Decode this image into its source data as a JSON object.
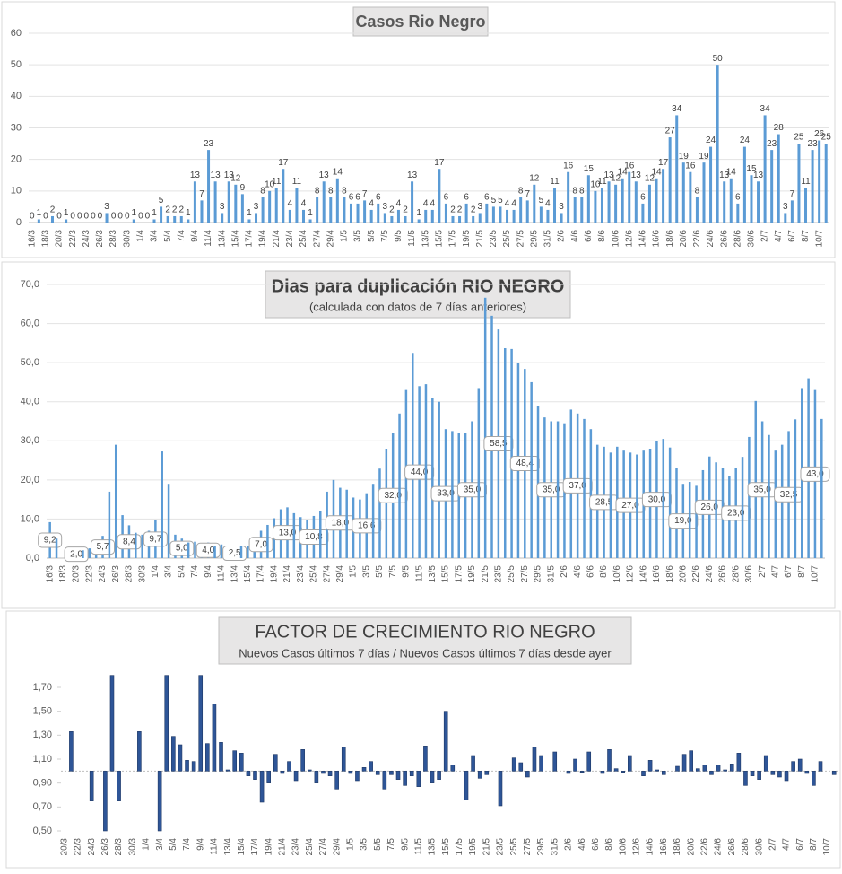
{
  "chart_data": [
    {
      "type": "bar",
      "title": "Casos Rio Negro",
      "color": "#5b9bd5",
      "grid": true,
      "data_labels": true,
      "categories": [
        "16/3",
        null,
        "18/3",
        null,
        "20/3",
        null,
        "22/3",
        null,
        "24/3",
        null,
        "26/3",
        null,
        "28/3",
        null,
        "30/3",
        null,
        "1/4",
        null,
        "3/4",
        null,
        "5/4",
        null,
        "7/4",
        null,
        "9/4",
        null,
        "11/4",
        null,
        "13/4",
        null,
        "15/4",
        null,
        "17/4",
        null,
        "19/4",
        null,
        "21/4",
        null,
        "23/4",
        null,
        "25/4",
        null,
        "27/4",
        null,
        "29/4",
        null,
        "1/5",
        null,
        "3/5",
        null,
        "5/5",
        null,
        "7/5",
        null,
        "9/5",
        null,
        "11/5",
        null,
        "13/5",
        null,
        "15/5",
        null,
        "17/5",
        null,
        "19/5",
        null,
        "21/5",
        null,
        "23/5",
        null,
        "25/5",
        null,
        "27/5",
        null,
        "29/5",
        null,
        "31/5",
        null,
        "2/6",
        null,
        "4/6",
        null,
        "6/6",
        null,
        "8/6",
        null,
        "10/6",
        null,
        "12/6",
        null,
        "14/6",
        null,
        "16/6",
        null,
        "18/6",
        null,
        "20/6",
        null,
        "22/6",
        null,
        "24/6",
        null,
        "26/6",
        null,
        "28/6",
        null,
        "30/6",
        null,
        "2/7",
        null,
        "4/7",
        null,
        "6/7",
        null,
        "8/7",
        null,
        "10/7",
        null
      ],
      "values": [
        0,
        1,
        0,
        2,
        0,
        1,
        0,
        0,
        0,
        0,
        0,
        3,
        0,
        0,
        0,
        1,
        0,
        0,
        1,
        5,
        2,
        2,
        2,
        1,
        13,
        7,
        23,
        13,
        3,
        13,
        12,
        9,
        1,
        3,
        8,
        10,
        11,
        17,
        4,
        11,
        4,
        1,
        8,
        13,
        8,
        14,
        8,
        6,
        6,
        7,
        4,
        6,
        3,
        2,
        4,
        2,
        13,
        1,
        4,
        4,
        17,
        6,
        2,
        2,
        6,
        2,
        3,
        6,
        5,
        5,
        4,
        4,
        8,
        7,
        12,
        5,
        4,
        11,
        3,
        16,
        8,
        8,
        15,
        10,
        11,
        13,
        12,
        14,
        16,
        13,
        6,
        12,
        14,
        17,
        27,
        34,
        19,
        16,
        8,
        19,
        24,
        50,
        13,
        14,
        6,
        24,
        15,
        13,
        34,
        23,
        28,
        3,
        7,
        25,
        11,
        23,
        26,
        25
      ],
      "ylim": [
        0,
        60
      ],
      "yticks": [
        0,
        10,
        20,
        30,
        40,
        50,
        60
      ]
    },
    {
      "type": "bar",
      "title": "Dias para duplicación RIO NEGRO",
      "subtitle": "(calculada con datos de 7 días anteriores)",
      "color": "#5b9bd5",
      "grid": true,
      "categories": [
        "16/3",
        null,
        "18/3",
        null,
        "20/3",
        null,
        "22/3",
        null,
        "24/3",
        null,
        "26/3",
        null,
        "28/3",
        null,
        "30/3",
        null,
        "1/4",
        null,
        "3/4",
        null,
        "5/4",
        null,
        "7/4",
        null,
        "9/4",
        null,
        "11/4",
        null,
        "13/4",
        null,
        "15/4",
        null,
        "17/4",
        null,
        "19/4",
        null,
        "21/4",
        null,
        "23/4",
        null,
        "25/4",
        null,
        "27/4",
        null,
        "29/4",
        null,
        "1/5",
        null,
        "3/5",
        null,
        "5/5",
        null,
        "7/5",
        null,
        "9/5",
        null,
        "11/5",
        null,
        "13/5",
        null,
        "15/5",
        null,
        "17/5",
        null,
        "19/5",
        null,
        "21/5",
        null,
        "23/5",
        null,
        "25/5",
        null,
        "27/5",
        null,
        "29/5",
        null,
        "31/5",
        null,
        "2/6",
        null,
        "4/6",
        null,
        "6/6",
        null,
        "8/6",
        null,
        "10/6",
        null,
        "12/6",
        null,
        "14/6",
        null,
        "16/6",
        null,
        "18/6",
        null,
        "20/6",
        null,
        "22/6",
        null,
        "24/6",
        null,
        "26/6",
        null,
        "28/6",
        null,
        "30/6",
        null,
        "2/7",
        null,
        "4/7",
        null,
        "6/7",
        null,
        "8/7",
        null,
        "10/7",
        null
      ],
      "values": [
        9.2,
        5.0,
        0.0,
        2.0,
        2.0,
        2.0,
        2.5,
        2.0,
        5.7,
        17.0,
        29.0,
        11.0,
        8.4,
        6.5,
        6.0,
        7.0,
        9.7,
        27.3,
        19.0,
        6.0,
        5.0,
        4.0,
        4.2,
        3.0,
        4.0,
        3.0,
        3.5,
        3.0,
        2.5,
        3.0,
        3.2,
        3.0,
        7.0,
        8.5,
        10.2,
        12.5,
        13.0,
        11.5,
        10.5,
        9.8,
        10.8,
        12.0,
        17.0,
        20.0,
        18.0,
        17.5,
        15.5,
        15.0,
        16.6,
        19.0,
        22.9,
        28.0,
        32.0,
        37.0,
        43.0,
        52.5,
        44.0,
        44.5,
        40.9,
        40.0,
        33.0,
        32.5,
        32.0,
        32.0,
        35.0,
        43.5,
        66.6,
        62.0,
        58.5,
        53.7,
        53.5,
        50.0,
        48.4,
        45.0,
        39.0,
        36.0,
        35.0,
        35.0,
        34.5,
        38.0,
        37.0,
        35.6,
        33.0,
        29.0,
        28.5,
        27.0,
        28.5,
        27.5,
        27.0,
        26.5,
        27.5,
        28.0,
        30.0,
        30.5,
        28.3,
        23.0,
        19.0,
        19.5,
        18.5,
        22.5,
        26.0,
        24.5,
        23.0,
        21.0,
        23.0,
        25.9,
        31.0,
        40.2,
        35.0,
        31.5,
        27.5,
        29.0,
        32.5,
        35.5,
        43.5,
        46.0,
        43.0,
        35.6
      ],
      "value_labels": [
        "9,2",
        null,
        null,
        null,
        "2,0",
        null,
        null,
        null,
        "5,7",
        null,
        null,
        null,
        "8,4",
        null,
        null,
        null,
        "9,7",
        null,
        null,
        null,
        "5,0",
        null,
        null,
        null,
        "4,0",
        null,
        null,
        null,
        "2,5",
        null,
        null,
        null,
        "7,0",
        null,
        null,
        null,
        "13,0",
        null,
        null,
        null,
        "10,8",
        null,
        null,
        null,
        "18,0",
        null,
        null,
        null,
        "16,6",
        null,
        null,
        null,
        "32,0",
        null,
        null,
        null,
        "44,0",
        null,
        null,
        null,
        "33,0",
        null,
        null,
        null,
        "35,0",
        null,
        null,
        null,
        "58,5",
        null,
        null,
        null,
        "48,4",
        null,
        null,
        null,
        "35,0",
        null,
        null,
        null,
        "37,0",
        null,
        null,
        null,
        "28,5",
        null,
        null,
        null,
        "27,0",
        null,
        null,
        null,
        "30,0",
        null,
        null,
        null,
        "19,0",
        null,
        null,
        null,
        "26,0",
        null,
        null,
        null,
        "23,0",
        null,
        null,
        null,
        "35,0",
        null,
        null,
        null,
        "32,5",
        null,
        null,
        null,
        "43,0",
        null
      ],
      "ylim": [
        0,
        70
      ],
      "yticks": [
        {
          "value": 0,
          "label": "0,0"
        },
        {
          "value": 10,
          "label": "10,0"
        },
        {
          "value": 20,
          "label": "20,0"
        },
        {
          "value": 30,
          "label": "30,0"
        },
        {
          "value": 40,
          "label": "40,0"
        },
        {
          "value": 50,
          "label": "50,0"
        },
        {
          "value": 60,
          "label": "60,0"
        },
        {
          "value": 70,
          "label": "70,0"
        }
      ]
    },
    {
      "type": "bar",
      "title": "FACTOR DE CRECIMIENTO RIO NEGRO",
      "subtitle": "Nuevos Casos últimos 7 días / Nuevos Casos últimos 7 días desde ayer",
      "color": "#2e5597",
      "grid": false,
      "bar_base": 1,
      "categories": [
        "20/3",
        null,
        "22/3",
        null,
        "24/3",
        null,
        "26/3",
        null,
        "28/3",
        null,
        "30/3",
        null,
        "1/4",
        null,
        "3/4",
        null,
        "5/4",
        null,
        "7/4",
        null,
        "9/4",
        null,
        "11/4",
        null,
        "13/4",
        null,
        "15/4",
        null,
        "17/4",
        null,
        "19/4",
        null,
        "21/4",
        null,
        "23/4",
        null,
        "25/4",
        null,
        "27/4",
        null,
        "29/4",
        null,
        "1/5",
        null,
        "3/5",
        null,
        "5/5",
        null,
        "7/5",
        null,
        "9/5",
        null,
        "11/5",
        null,
        "13/5",
        null,
        "15/5",
        null,
        "17/5",
        null,
        "19/5",
        null,
        "21/5",
        null,
        "23/5",
        null,
        "25/5",
        null,
        "27/5",
        null,
        "29/5",
        null,
        "31/5",
        null,
        "2/6",
        null,
        "4/6",
        null,
        "6/6",
        null,
        "8/6",
        null,
        "10/6",
        null,
        "12/6",
        null,
        "14/6",
        null,
        "16/6",
        null,
        "18/6",
        null,
        "20/6",
        null,
        "22/6",
        null,
        "24/6",
        null,
        "26/6",
        null,
        "28/6",
        null,
        "30/6",
        null,
        "2/7",
        null,
        "4/7",
        null,
        "6/7",
        null,
        "8/7",
        null,
        "10/7",
        null
      ],
      "values": [
        1.0,
        1.33,
        1.0,
        1.0,
        0.75,
        1.0,
        0.5,
        1.8,
        0.75,
        1.0,
        1.0,
        1.33,
        1.0,
        1.0,
        0.5,
        1.8,
        1.29,
        1.22,
        1.09,
        1.08,
        1.8,
        1.23,
        1.56,
        1.24,
        1.01,
        1.17,
        1.15,
        0.96,
        0.93,
        0.74,
        0.9,
        1.14,
        0.98,
        1.08,
        0.92,
        1.18,
        1.01,
        0.9,
        0.98,
        0.96,
        0.85,
        1.2,
        0.98,
        0.92,
        1.03,
        1.08,
        0.97,
        0.85,
        0.97,
        0.93,
        0.88,
        0.96,
        0.87,
        1.21,
        0.9,
        0.93,
        1.5,
        1.05,
        1.0,
        0.76,
        1.13,
        0.94,
        0.97,
        1.0,
        0.71,
        1.0,
        1.11,
        1.07,
        0.95,
        1.2,
        1.13,
        1.0,
        1.16,
        1.0,
        0.98,
        1.1,
        0.99,
        1.16,
        1.0,
        0.98,
        1.18,
        1.02,
        0.99,
        1.13,
        1.0,
        0.96,
        1.09,
        1.01,
        0.97,
        1.0,
        1.04,
        1.14,
        1.17,
        1.02,
        1.05,
        0.97,
        1.05,
        1.01,
        1.06,
        1.15,
        0.88,
        0.96,
        0.93,
        1.13,
        0.97,
        0.95,
        0.92,
        1.08,
        1.1,
        0.98,
        0.88,
        1.08,
        1.0,
        0.97
      ],
      "ylim": [
        0.5,
        1.85
      ],
      "yticks": [
        {
          "value": 0.5,
          "label": "0,50"
        },
        {
          "value": 0.7,
          "label": "0,70"
        },
        {
          "value": 0.9,
          "label": "0,90"
        },
        {
          "value": 1.1,
          "label": "1,10"
        },
        {
          "value": 1.3,
          "label": "1,30"
        },
        {
          "value": 1.5,
          "label": "1,50"
        },
        {
          "value": 1.7,
          "label": "1,70"
        }
      ]
    }
  ]
}
